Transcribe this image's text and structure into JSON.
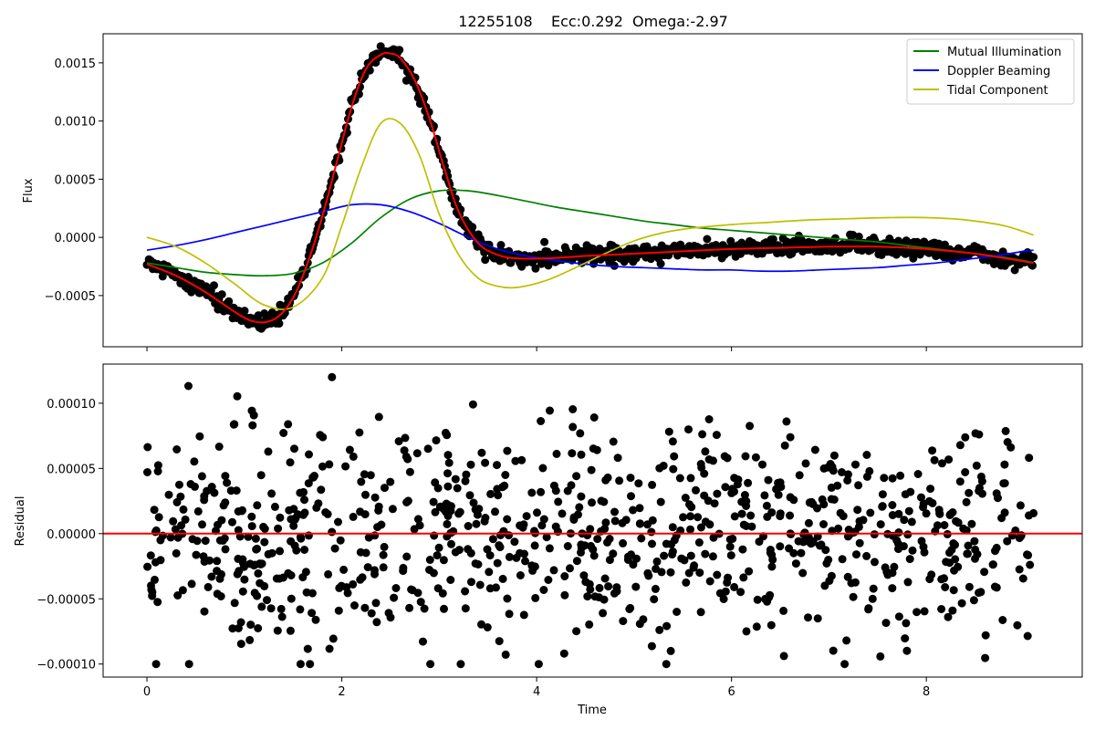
{
  "figure": {
    "title": "12255108    Ecc:0.292  Omega:-2.97"
  },
  "chart_data": [
    {
      "type": "scatter",
      "panel": "top",
      "title": "12255108    Ecc:0.292  Omega:-2.97",
      "xlabel": "",
      "ylabel": "Flux",
      "xlim": [
        -0.45,
        9.6
      ],
      "ylim": [
        -0.00094,
        0.00175
      ],
      "x_ticks": [
        0,
        2,
        4,
        6,
        8
      ],
      "x_tick_labels": [
        "",
        "",
        "",
        "",
        ""
      ],
      "y_ticks": [
        -0.0005,
        0.0,
        0.0005,
        0.001,
        0.0015
      ],
      "y_tick_labels": [
        "−0.0005",
        "0.0000",
        "0.0005",
        "0.0010",
        "0.0015"
      ],
      "grid": false,
      "legend_position": "top-right",
      "series": [
        {
          "name": "Mutual Illumination",
          "kind": "line",
          "color": "#008000",
          "x": [
            0,
            0.3,
            0.6,
            0.9,
            1.2,
            1.5,
            1.8,
            2.1,
            2.4,
            2.7,
            3.0,
            3.3,
            3.6,
            3.9,
            4.2,
            4.5,
            4.8,
            5.1,
            5.4,
            5.7,
            6.0,
            6.3,
            6.6,
            6.9,
            7.2,
            7.5,
            7.8,
            8.1,
            8.4,
            8.7,
            9.0,
            9.1
          ],
          "y": [
            -0.00022,
            -0.00026,
            -0.0003,
            -0.00032,
            -0.00033,
            -0.00031,
            -0.00022,
            -5e-05,
            0.00017,
            0.00033,
            0.0004,
            0.0004,
            0.00036,
            0.00031,
            0.00026,
            0.00022,
            0.00018,
            0.00014,
            0.00011,
            8e-05,
            6e-05,
            4e-05,
            2e-05,
            0.0,
            -2e-05,
            -4e-05,
            -7e-05,
            -0.0001,
            -0.00013,
            -0.00016,
            -0.0002,
            -0.00022
          ]
        },
        {
          "name": "Doppler Beaming",
          "kind": "line",
          "color": "#0000ff",
          "x": [
            0,
            0.3,
            0.6,
            0.9,
            1.2,
            1.5,
            1.8,
            2.1,
            2.4,
            2.7,
            3.0,
            3.3,
            3.6,
            3.9,
            4.2,
            4.5,
            4.8,
            5.1,
            5.4,
            5.7,
            6.0,
            6.3,
            6.6,
            6.9,
            7.2,
            7.5,
            7.8,
            8.1,
            8.4,
            8.7,
            9.0,
            9.1
          ],
          "y": [
            -0.00011,
            -7e-05,
            -2e-05,
            4e-05,
            0.0001,
            0.00016,
            0.00022,
            0.00028,
            0.00028,
            0.00022,
            0.00012,
            0.0,
            -0.0001,
            -0.00016,
            -0.0002,
            -0.00023,
            -0.00025,
            -0.00026,
            -0.00027,
            -0.00028,
            -0.00028,
            -0.00029,
            -0.00029,
            -0.00028,
            -0.00027,
            -0.00026,
            -0.00024,
            -0.00022,
            -0.00019,
            -0.00016,
            -0.00012,
            -0.00011
          ]
        },
        {
          "name": "Tidal Component",
          "kind": "line",
          "color": "#bfbf00",
          "x": [
            0,
            0.3,
            0.6,
            0.9,
            1.2,
            1.5,
            1.8,
            2.0,
            2.2,
            2.4,
            2.6,
            2.8,
            3.0,
            3.2,
            3.4,
            3.6,
            3.8,
            4.1,
            4.4,
            4.7,
            5.0,
            5.3,
            5.6,
            6.0,
            6.4,
            6.8,
            7.2,
            7.6,
            8.0,
            8.4,
            8.8,
            9.1
          ],
          "y": [
            0.0,
            -8e-05,
            -0.00022,
            -0.0004,
            -0.00058,
            -0.0006,
            -0.00035,
            0.0001,
            0.0006,
            0.00098,
            0.00098,
            0.0007,
            0.0002,
            -0.00015,
            -0.00035,
            -0.00042,
            -0.00043,
            -0.00037,
            -0.00026,
            -0.00014,
            -3e-05,
            4e-05,
            8e-05,
            0.00011,
            0.00013,
            0.00015,
            0.00016,
            0.00017,
            0.00017,
            0.00015,
            0.0001,
            2e-05
          ]
        },
        {
          "name": "",
          "kind": "line",
          "color": "#ff0000",
          "x": [
            0,
            0.3,
            0.6,
            0.9,
            1.05,
            1.2,
            1.35,
            1.5,
            1.65,
            1.8,
            1.95,
            2.1,
            2.25,
            2.4,
            2.5,
            2.6,
            2.75,
            2.9,
            3.05,
            3.2,
            3.4,
            3.6,
            3.8,
            4.1,
            4.5,
            5.0,
            5.5,
            6.0,
            6.5,
            7.0,
            7.5,
            8.0,
            8.5,
            9.1
          ],
          "y": [
            -0.00023,
            -0.00033,
            -0.00047,
            -0.00064,
            -0.00071,
            -0.00073,
            -0.00068,
            -0.00052,
            -0.00022,
            0.00018,
            0.00065,
            0.00112,
            0.00145,
            0.00157,
            0.00158,
            0.00154,
            0.00135,
            0.00102,
            0.0006,
            0.00022,
            -5e-05,
            -0.00015,
            -0.00018,
            -0.00018,
            -0.00016,
            -0.00014,
            -0.00012,
            -0.0001,
            -9e-05,
            -8e-05,
            -8e-05,
            -0.0001,
            -0.00014,
            -0.00022
          ]
        },
        {
          "name": "",
          "kind": "scatter",
          "color": "#000000",
          "note": "dense observed flux points; rendered as the model curve plus scatter noise",
          "noise_std": 3.5e-05,
          "count": 900
        }
      ]
    },
    {
      "type": "scatter",
      "panel": "bottom",
      "xlabel": "Time",
      "ylabel": "Residual",
      "xlim": [
        -0.45,
        9.6
      ],
      "ylim": [
        -0.00011,
        0.00013
      ],
      "x_ticks": [
        0,
        2,
        4,
        6,
        8
      ],
      "x_tick_labels": [
        "0",
        "2",
        "4",
        "6",
        "8"
      ],
      "y_ticks": [
        -0.0001,
        -5e-05,
        0.0,
        5e-05,
        0.0001
      ],
      "y_tick_labels": [
        "−0.00010",
        "−0.00005",
        "0.00000",
        "0.00005",
        "0.00010"
      ],
      "grid": false,
      "reference_line": {
        "y": 0.0,
        "color": "#ff0000"
      },
      "series": [
        {
          "name": "",
          "kind": "scatter",
          "color": "#000000",
          "x_range": [
            0.0,
            9.1
          ],
          "count": 900,
          "noise_std": 4.2e-05,
          "y_range": [
            -0.0001,
            0.00012
          ]
        }
      ]
    }
  ]
}
